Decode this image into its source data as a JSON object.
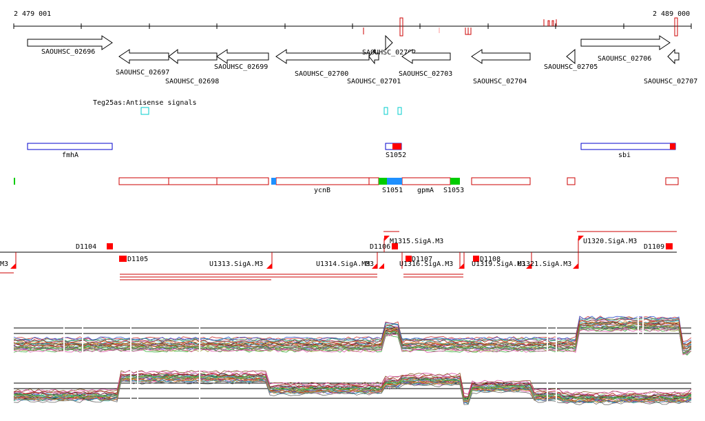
{
  "ruler": {
    "start_label": "2 479 001",
    "end_label": "2 489 000"
  },
  "colors": {
    "annotation": "#000000",
    "region_outline": "#0000cc",
    "tss_red": "#ff0000",
    "antisense": "#00cccc",
    "segment_blue": "#1e90ff",
    "segment_green": "#00cc00",
    "promoter_line": "#cc0000"
  },
  "genes": [
    {
      "label": "SAOUHSC_02696",
      "strand": "+"
    },
    {
      "label": "SAOUHSC_02697",
      "strand": "-"
    },
    {
      "label": "SAOUHSC_02698",
      "strand": "-"
    },
    {
      "label": "SAOUHSC_02699",
      "strand": "-"
    },
    {
      "label": "SAOUHSC_02700",
      "strand": "-"
    },
    {
      "label": "SAOUHSC_02701",
      "strand": "-"
    },
    {
      "label": "SAOUHSC_02702",
      "strand": "+"
    },
    {
      "label": "SAOUHSC_02703",
      "strand": "-"
    },
    {
      "label": "SAOUHSC_02704",
      "strand": "-"
    },
    {
      "label": "SAOUHSC_02705",
      "strand": "-"
    },
    {
      "label": "SAOUHSC_02706",
      "strand": "+"
    },
    {
      "label": "SAOUHSC_02707",
      "strand": "-"
    }
  ],
  "antisense": {
    "label": "Teg25as:Antisense signals"
  },
  "regions": [
    {
      "label": "fmhA"
    },
    {
      "label": "S1052"
    },
    {
      "label": "sbi"
    }
  ],
  "segments": [
    {
      "label": "ycnB"
    },
    {
      "label": "S1051"
    },
    {
      "label": "gpmA"
    },
    {
      "label": "S1053"
    }
  ],
  "promoter_labels": [
    {
      "label": "D1104"
    },
    {
      "label": "D1105"
    },
    {
      "label": "U1313.SigA.M3"
    },
    {
      "label": "U1314.SigA.M3"
    },
    {
      "label": "M3"
    },
    {
      "label": "M1315.SigA.M3"
    },
    {
      "label": "D1106"
    },
    {
      "label": "U1316.SigA.M3"
    },
    {
      "label": "D1107"
    },
    {
      "label": "D1108"
    },
    {
      "label": "U1319.SigA.M3"
    },
    {
      "label": "U1321.SigA.M3"
    },
    {
      "label": "U1320.SigA.M3"
    },
    {
      "label": "D1109"
    },
    {
      "label": "M3"
    }
  ]
}
